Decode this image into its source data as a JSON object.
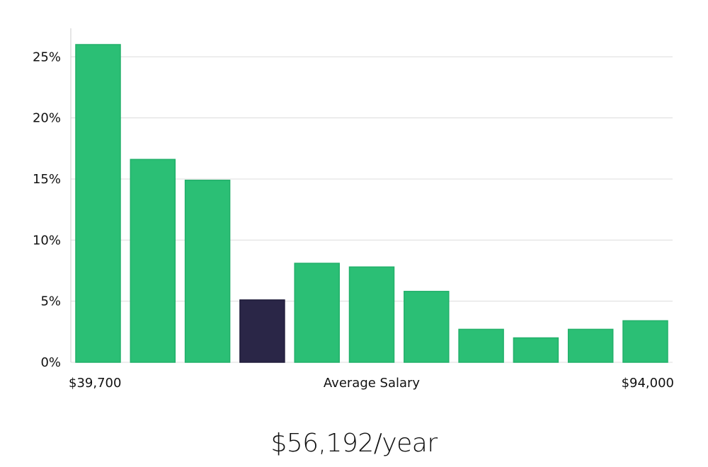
{
  "chart_data": {
    "type": "bar",
    "categories": [
      "1",
      "2",
      "3",
      "4",
      "5",
      "6",
      "7",
      "8",
      "9",
      "10",
      "11"
    ],
    "values": [
      26.0,
      16.6,
      14.9,
      5.1,
      8.1,
      7.8,
      5.8,
      2.7,
      2.0,
      2.7,
      3.4
    ],
    "highlight_index": 3,
    "ylim": [
      0,
      27
    ],
    "yticks": [
      0,
      5,
      10,
      15,
      20,
      25
    ],
    "ytick_labels": [
      "0%",
      "5%",
      "10%",
      "15%",
      "20%",
      "25%"
    ],
    "x_min_label": "$39,700",
    "xlabel": "Average Salary",
    "x_max_label": "$94,000",
    "grid": true,
    "colors": {
      "bar": "#2bbf75",
      "bar_edge": "#22b06a",
      "highlight": "#2a2647",
      "grid": "#dcdcdc",
      "axis": "#cccccc"
    }
  },
  "summary": {
    "salary_text": "$56,192/year"
  }
}
